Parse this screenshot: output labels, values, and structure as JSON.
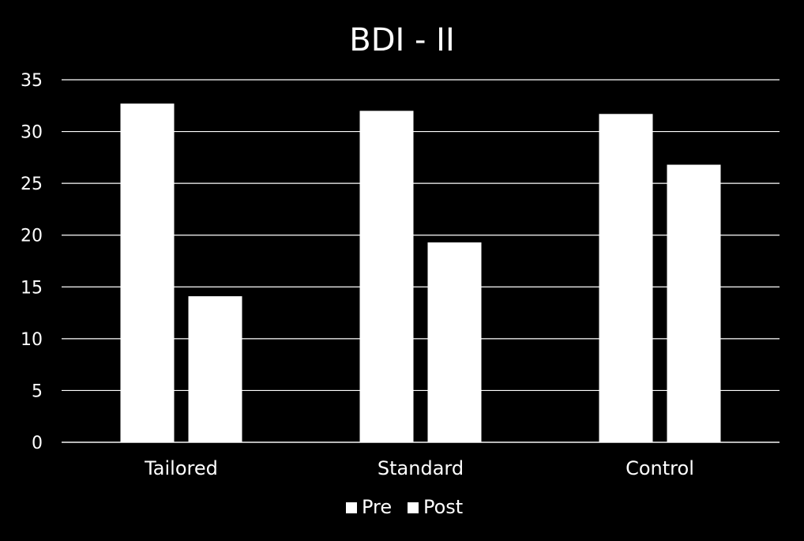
{
  "chart_data": {
    "type": "bar",
    "title": "BDI - II",
    "categories": [
      "Tailored",
      "Standard",
      "Control"
    ],
    "series": [
      {
        "name": "Pre",
        "values": [
          32.7,
          32.0,
          31.7
        ]
      },
      {
        "name": "Post",
        "values": [
          14.1,
          19.3,
          26.8
        ]
      }
    ],
    "ylim": [
      0,
      35
    ],
    "yticks": [
      0,
      5,
      10,
      15,
      20,
      25,
      30,
      35
    ],
    "grid": true,
    "legend_position": "bottom",
    "colors": {
      "background": "#000000",
      "bars": "#ffffff",
      "grid": "#ffffff",
      "text": "#ffffff"
    }
  }
}
